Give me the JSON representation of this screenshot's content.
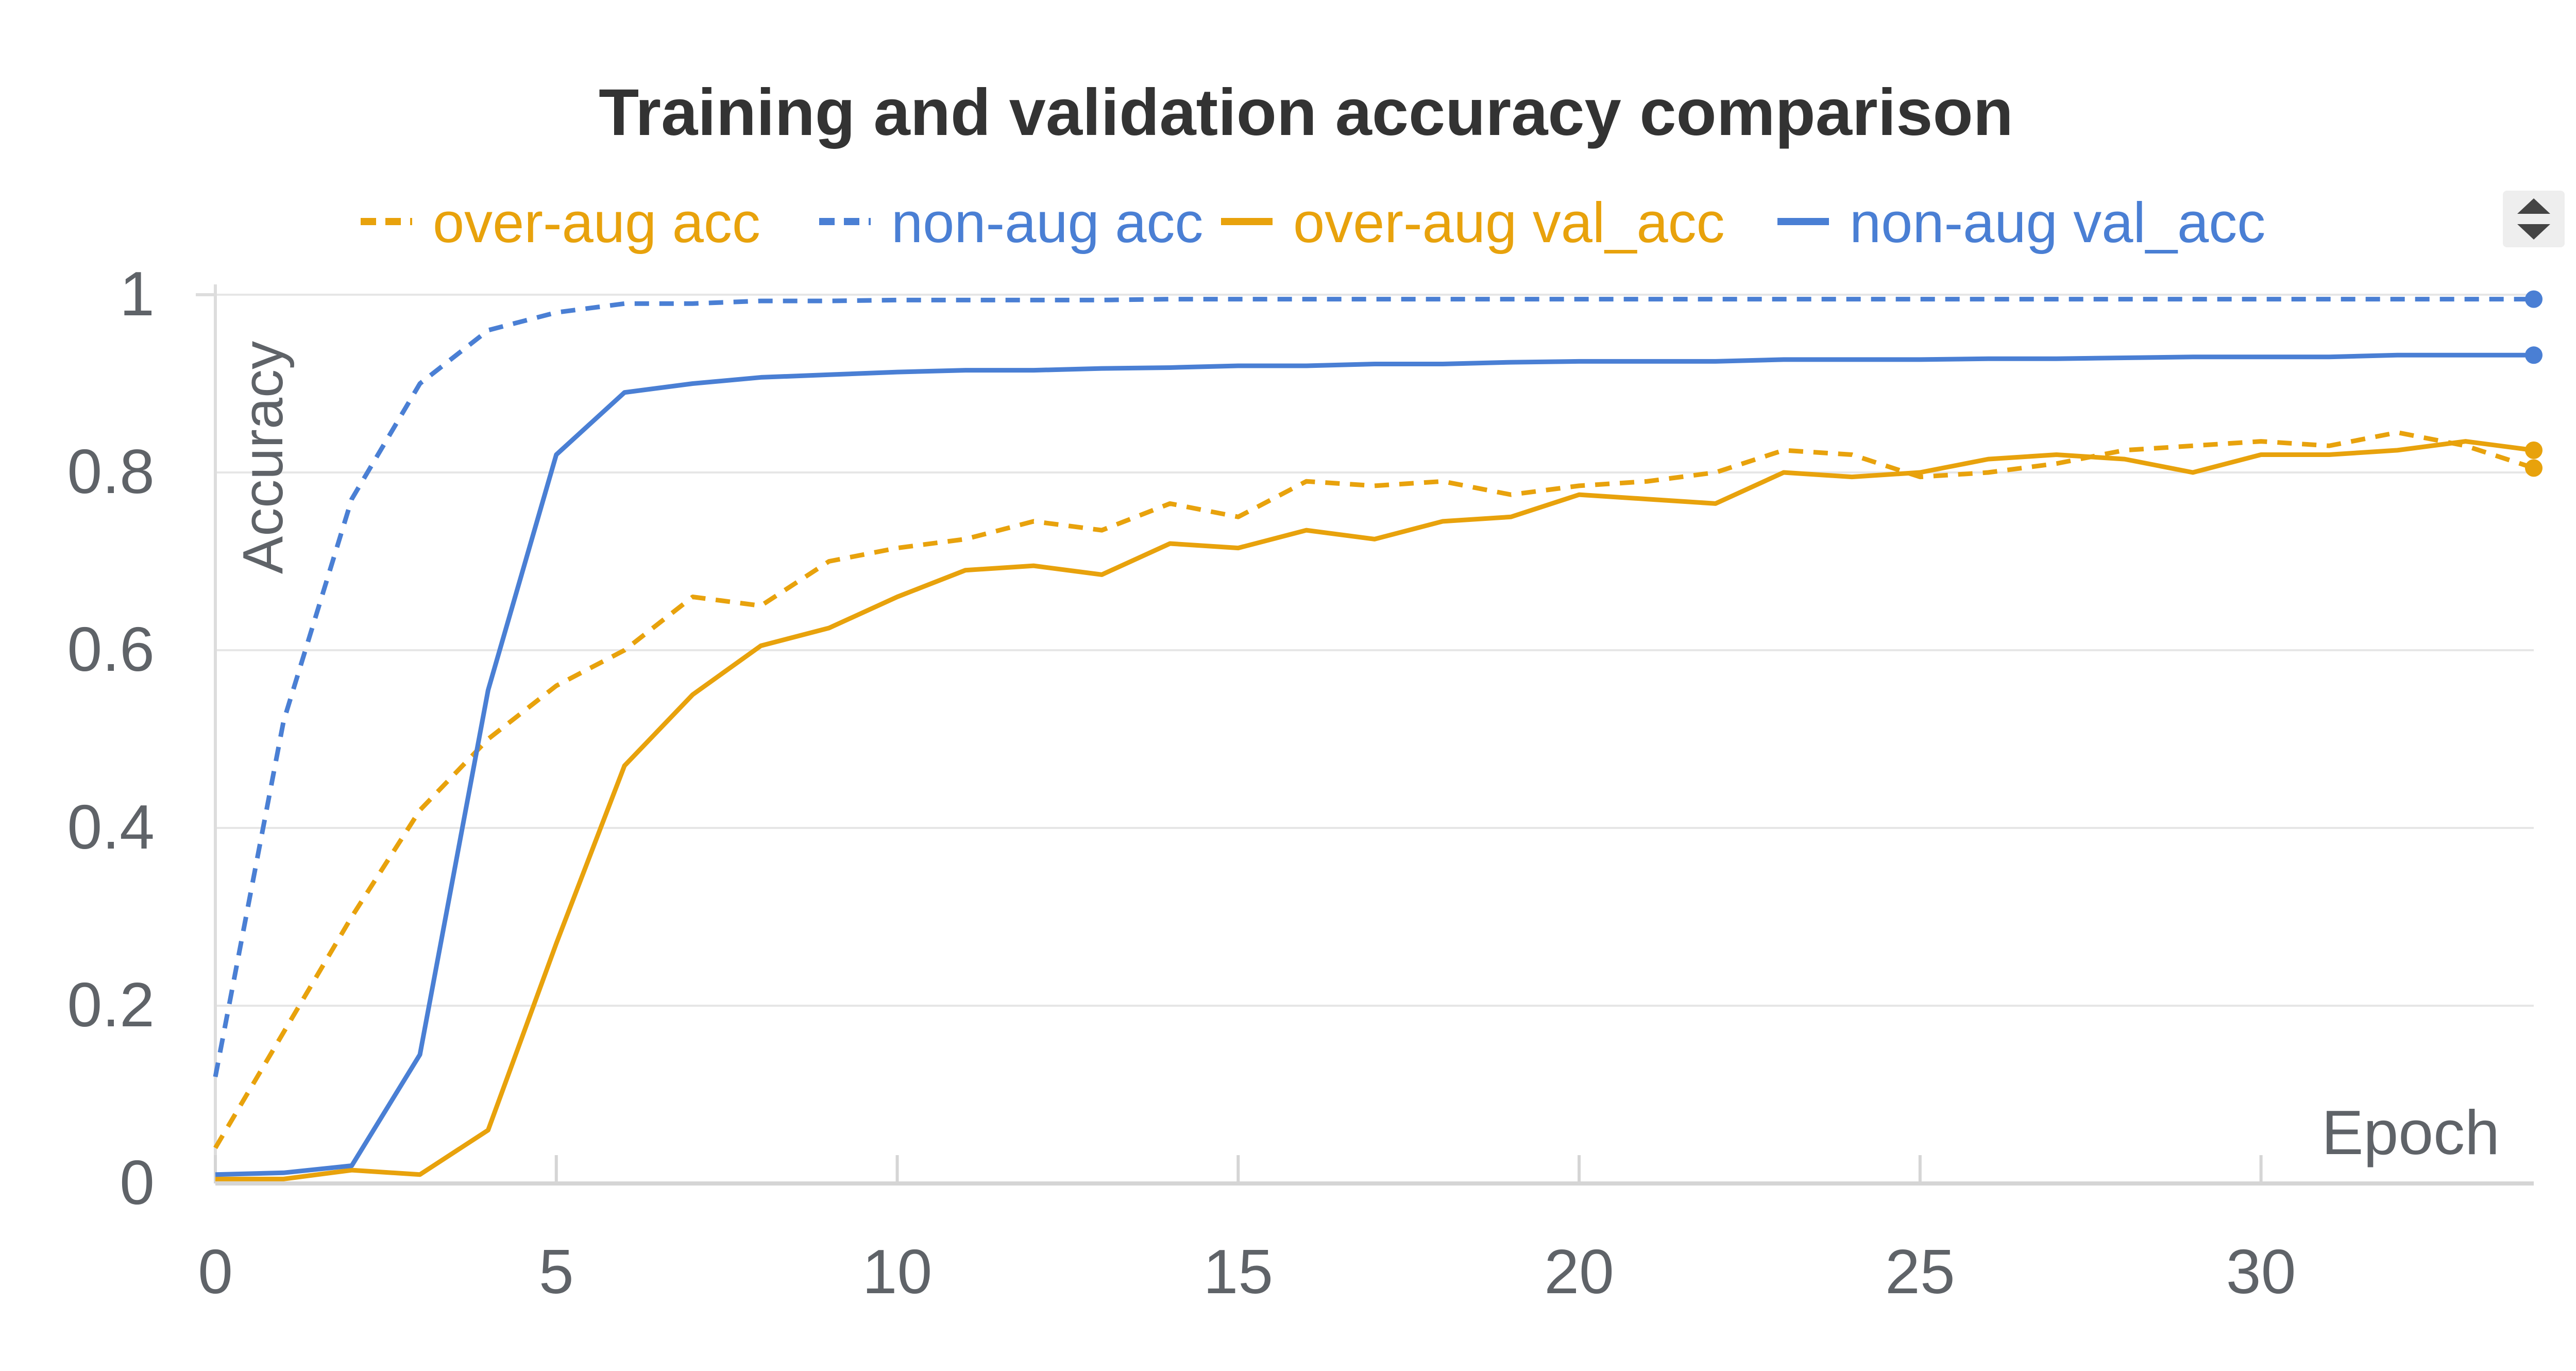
{
  "chart_data": {
    "type": "line",
    "title": "Training and validation accuracy comparison",
    "xlabel": "Epoch",
    "ylabel": "Accuracy",
    "xlim": [
      0,
      34
    ],
    "ylim": [
      0,
      1
    ],
    "x_ticks": [
      0,
      5,
      10,
      15,
      20,
      25,
      30
    ],
    "y_ticks": [
      0,
      0.2,
      0.4,
      0.6,
      0.8,
      1
    ],
    "y_tick_labels": [
      "0",
      "0.2",
      "0.4",
      "0.6",
      "0.8",
      "1"
    ],
    "grid": "horizontal",
    "legend_position": "top",
    "x": [
      0,
      1,
      2,
      3,
      4,
      5,
      6,
      7,
      8,
      9,
      10,
      11,
      12,
      13,
      14,
      15,
      16,
      17,
      18,
      19,
      20,
      21,
      22,
      23,
      24,
      25,
      26,
      27,
      28,
      29,
      30,
      31,
      32,
      33,
      34
    ],
    "series": [
      {
        "name": "over-aug acc",
        "color": "#E8A20C",
        "dash": "dashed",
        "values": [
          0.04,
          0.17,
          0.3,
          0.42,
          0.5,
          0.56,
          0.6,
          0.66,
          0.65,
          0.7,
          0.715,
          0.725,
          0.745,
          0.735,
          0.765,
          0.75,
          0.79,
          0.785,
          0.79,
          0.775,
          0.785,
          0.79,
          0.8,
          0.825,
          0.82,
          0.795,
          0.8,
          0.81,
          0.825,
          0.83,
          0.835,
          0.83,
          0.845,
          0.83,
          0.805
        ]
      },
      {
        "name": "non-aug acc",
        "color": "#4A7FD4",
        "dash": "dashed",
        "values": [
          0.12,
          0.52,
          0.77,
          0.9,
          0.96,
          0.98,
          0.99,
          0.99,
          0.993,
          0.993,
          0.994,
          0.994,
          0.994,
          0.994,
          0.995,
          0.995,
          0.995,
          0.995,
          0.995,
          0.995,
          0.995,
          0.995,
          0.995,
          0.995,
          0.995,
          0.995,
          0.995,
          0.995,
          0.995,
          0.995,
          0.995,
          0.995,
          0.995,
          0.995,
          0.995
        ]
      },
      {
        "name": "over-aug val_acc",
        "color": "#E8A20C",
        "dash": "solid",
        "values": [
          0.005,
          0.005,
          0.015,
          0.01,
          0.06,
          0.27,
          0.47,
          0.55,
          0.605,
          0.625,
          0.66,
          0.69,
          0.695,
          0.685,
          0.72,
          0.715,
          0.735,
          0.725,
          0.745,
          0.75,
          0.775,
          0.77,
          0.765,
          0.8,
          0.795,
          0.8,
          0.815,
          0.82,
          0.815,
          0.8,
          0.82,
          0.82,
          0.825,
          0.835,
          0.825
        ]
      },
      {
        "name": "non-aug val_acc",
        "color": "#4A7FD4",
        "dash": "solid",
        "values": [
          0.01,
          0.012,
          0.02,
          0.145,
          0.555,
          0.82,
          0.89,
          0.9,
          0.907,
          0.91,
          0.913,
          0.915,
          0.915,
          0.917,
          0.918,
          0.92,
          0.92,
          0.922,
          0.922,
          0.924,
          0.925,
          0.925,
          0.925,
          0.927,
          0.927,
          0.927,
          0.928,
          0.928,
          0.929,
          0.93,
          0.93,
          0.93,
          0.932,
          0.932,
          0.932
        ]
      }
    ]
  },
  "legend_scroll_icon": "sort-arrows-icon",
  "colors": {
    "axis": "#5F6368",
    "grid": "#E6E6E6",
    "title": "#333333"
  }
}
